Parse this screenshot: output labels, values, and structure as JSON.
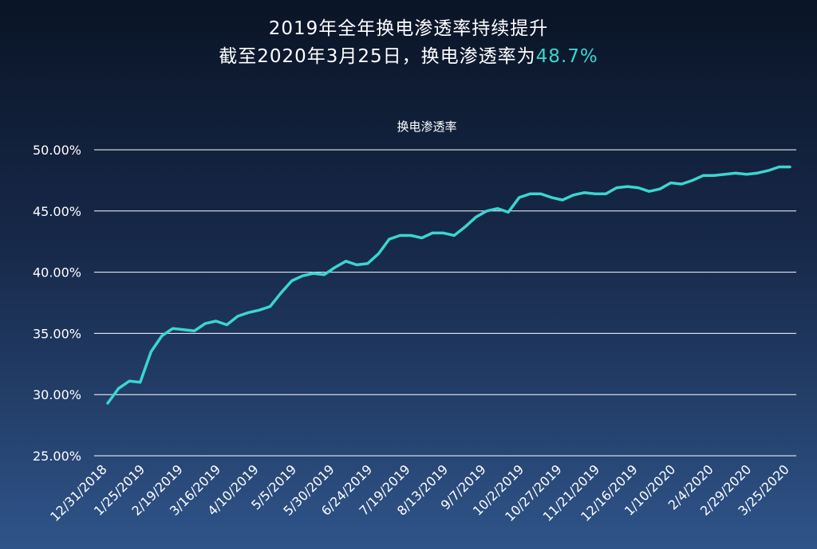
{
  "header": {
    "line1": "2019年全年换电渗透率持续提升",
    "line2_prefix": "截至2020年3月25日，换电渗透率为",
    "line2_highlight": "48.7%"
  },
  "colors": {
    "line": "#3ad6d0",
    "grid": "#ffffff",
    "text": "#ffffff"
  },
  "chart_data": {
    "type": "line",
    "title": "换电渗透率",
    "ylim": [
      25,
      50
    ],
    "yticks": [
      "25.00%",
      "30.00%",
      "35.00%",
      "40.00%",
      "45.00%",
      "50.00%"
    ],
    "ytick_values": [
      25,
      30,
      35,
      40,
      45,
      50
    ],
    "xticks": [
      "12/31/2018",
      "1/25/2019",
      "2/19/2019",
      "3/16/2019",
      "4/10/2019",
      "5/5/2019",
      "5/30/2019",
      "6/24/2019",
      "7/19/2019",
      "8/13/2019",
      "9/7/2019",
      "10/2/2019",
      "10/27/2019",
      "11/21/2019",
      "12/16/2019",
      "1/10/2020",
      "2/4/2020",
      "2/29/2020",
      "3/25/2020"
    ],
    "grid": true,
    "legend": "none",
    "series": [
      {
        "values": [
          29.3,
          30.5,
          31.1,
          31.0,
          33.5,
          34.8,
          35.4,
          35.3,
          35.2,
          35.8,
          36.0,
          35.7,
          36.4,
          36.7,
          36.9,
          37.2,
          38.3,
          39.3,
          39.7,
          39.9,
          39.8,
          40.4,
          40.9,
          40.6,
          40.7,
          41.5,
          42.7,
          43.0,
          43.0,
          42.8,
          43.2,
          43.2,
          43.0,
          43.7,
          44.5,
          45.0,
          45.2,
          44.9,
          46.1,
          46.4,
          46.4,
          46.1,
          45.9,
          46.3,
          46.5,
          46.4,
          46.4,
          46.9,
          47.0,
          46.9,
          46.6,
          46.8,
          47.3,
          47.2,
          47.5,
          47.9,
          47.9,
          48.0,
          48.1,
          48.0,
          48.1,
          48.3,
          48.6,
          48.6
        ]
      }
    ]
  }
}
